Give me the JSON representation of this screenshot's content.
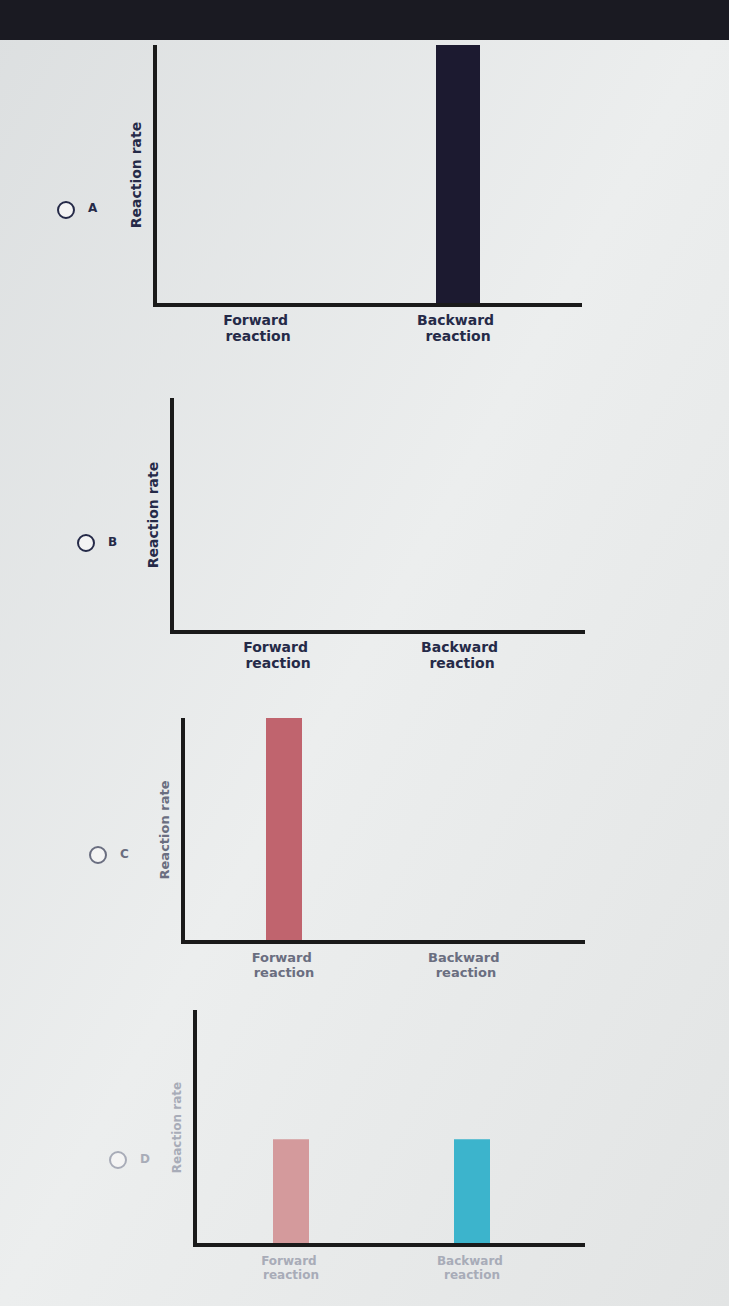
{
  "chart_data": [
    {
      "type": "bar",
      "title": "A",
      "y_label": "Reaction rate",
      "categories": [
        "Forward reaction",
        "Backward reaction"
      ],
      "values": [
        0,
        10
      ],
      "colors": [
        "#c0646e",
        "#1c1a30"
      ],
      "ylim": [
        0,
        10
      ],
      "tick_labels": false
    },
    {
      "type": "bar",
      "title": "B",
      "y_label": "Reaction rate",
      "categories": [
        "Forward reaction",
        "Backward reaction"
      ],
      "values": [
        0,
        0
      ],
      "ylim": [
        0,
        10
      ],
      "tick_labels": false
    },
    {
      "type": "bar",
      "title": "C",
      "y_label": "Reaction rate",
      "categories": [
        "Forward reaction",
        "Backward reaction"
      ],
      "values": [
        10,
        0
      ],
      "colors": [
        "#c0646e",
        "#3ab0c8"
      ],
      "ylim": [
        0,
        10
      ],
      "tick_labels": false
    },
    {
      "type": "bar",
      "title": "D",
      "y_label": "Reaction rate",
      "categories": [
        "Forward reaction",
        "Backward reaction"
      ],
      "values": [
        4.5,
        4.5
      ],
      "colors": [
        "#d49a9c",
        "#3cb4cc"
      ],
      "ylim": [
        0,
        10
      ],
      "tick_labels": false
    }
  ]
}
